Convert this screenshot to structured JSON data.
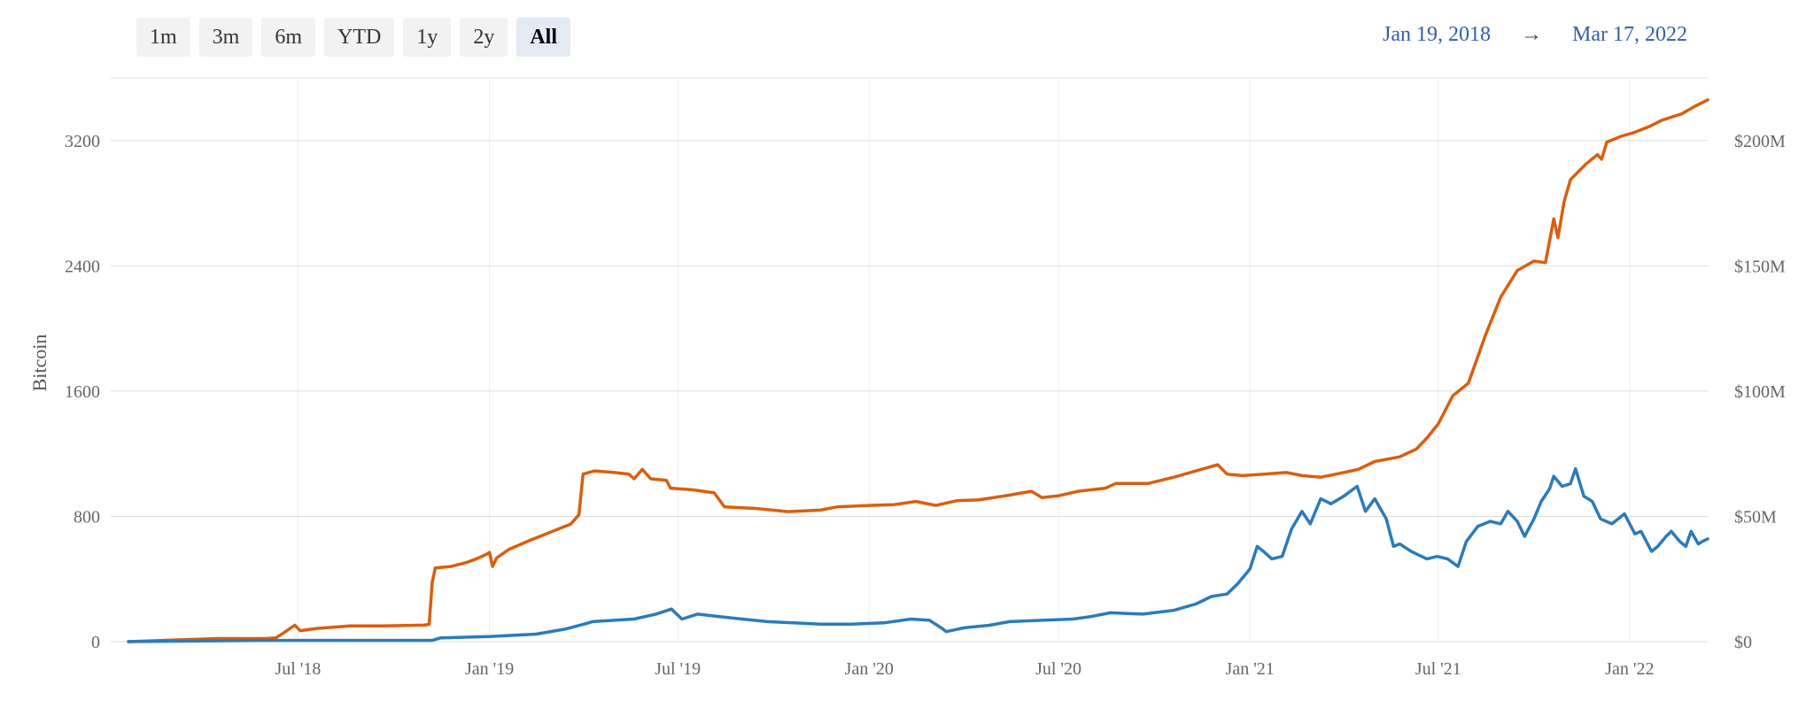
{
  "range_buttons": [
    {
      "label": "1m",
      "active": false
    },
    {
      "label": "3m",
      "active": false
    },
    {
      "label": "6m",
      "active": false
    },
    {
      "label": "YTD",
      "active": false
    },
    {
      "label": "1y",
      "active": false
    },
    {
      "label": "2y",
      "active": false
    },
    {
      "label": "All",
      "active": true
    }
  ],
  "date_range": {
    "start": "Jan 19, 2018",
    "arrow": "→",
    "end": "Mar 17, 2022"
  },
  "colors": {
    "bitcoin_series": "#d95f0e",
    "usd_series": "#2b7bba",
    "grid": "#dddddd",
    "vgrid": "#eeeeee"
  },
  "chart_data": {
    "type": "line",
    "title": "",
    "xlabel": "",
    "ylabel": "Bitcoin",
    "ylim": [
      0,
      3600
    ],
    "y2lim": [
      0,
      225
    ],
    "x_range": [
      "2018-01-19",
      "2022-03-17"
    ],
    "x_ticks": [
      {
        "date": "2018-07-01",
        "label": "Jul '18"
      },
      {
        "date": "2019-01-01",
        "label": "Jan '19"
      },
      {
        "date": "2019-07-01",
        "label": "Jul '19"
      },
      {
        "date": "2020-01-01",
        "label": "Jan '20"
      },
      {
        "date": "2020-07-01",
        "label": "Jul '20"
      },
      {
        "date": "2021-01-01",
        "label": "Jan '21"
      },
      {
        "date": "2021-07-01",
        "label": "Jul '21"
      },
      {
        "date": "2022-01-01",
        "label": "Jan '22"
      }
    ],
    "y_ticks": [
      0,
      800,
      1600,
      2400,
      3200
    ],
    "y_tick_labels": [
      "0",
      "800",
      "1600",
      "2400",
      "3200"
    ],
    "y2_ticks": [
      0,
      50,
      100,
      150,
      200
    ],
    "y2_tick_labels": [
      "$0",
      "$50M",
      "$100M",
      "$150M",
      "$200M"
    ],
    "grid": true,
    "legend": "none",
    "series": [
      {
        "axis": "left",
        "color": "#d95f0e",
        "points": [
          [
            "2018-01-19",
            0
          ],
          [
            "2018-03-01",
            10
          ],
          [
            "2018-04-15",
            20
          ],
          [
            "2018-06-01",
            20
          ],
          [
            "2018-06-10",
            25
          ],
          [
            "2018-06-18",
            60
          ],
          [
            "2018-06-28",
            105
          ],
          [
            "2018-07-03",
            70
          ],
          [
            "2018-07-20",
            85
          ],
          [
            "2018-08-20",
            100
          ],
          [
            "2018-09-20",
            100
          ],
          [
            "2018-10-30",
            105
          ],
          [
            "2018-11-04",
            110
          ],
          [
            "2018-11-07",
            380
          ],
          [
            "2018-11-10",
            470
          ],
          [
            "2018-11-25",
            480
          ],
          [
            "2018-12-10",
            505
          ],
          [
            "2018-12-20",
            530
          ],
          [
            "2018-12-30",
            560
          ],
          [
            "2019-01-01",
            570
          ],
          [
            "2019-01-04",
            480
          ],
          [
            "2019-01-08",
            535
          ],
          [
            "2019-01-20",
            590
          ],
          [
            "2019-02-10",
            650
          ],
          [
            "2019-03-01",
            700
          ],
          [
            "2019-03-20",
            750
          ],
          [
            "2019-03-28",
            810
          ],
          [
            "2019-04-01",
            1070
          ],
          [
            "2019-04-12",
            1090
          ],
          [
            "2019-05-01",
            1080
          ],
          [
            "2019-05-15",
            1070
          ],
          [
            "2019-05-20",
            1040
          ],
          [
            "2019-05-28",
            1100
          ],
          [
            "2019-06-05",
            1040
          ],
          [
            "2019-06-20",
            1030
          ],
          [
            "2019-06-24",
            980
          ],
          [
            "2019-07-15",
            970
          ],
          [
            "2019-08-05",
            950
          ],
          [
            "2019-08-15",
            860
          ],
          [
            "2019-09-15",
            850
          ],
          [
            "2019-10-15",
            830
          ],
          [
            "2019-11-15",
            840
          ],
          [
            "2019-12-01",
            860
          ],
          [
            "2020-01-01",
            870
          ],
          [
            "2020-01-25",
            875
          ],
          [
            "2020-02-15",
            895
          ],
          [
            "2020-03-05",
            870
          ],
          [
            "2020-03-25",
            900
          ],
          [
            "2020-04-15",
            905
          ],
          [
            "2020-05-10",
            930
          ],
          [
            "2020-06-05",
            960
          ],
          [
            "2020-06-15",
            920
          ],
          [
            "2020-06-30",
            930
          ],
          [
            "2020-07-20",
            960
          ],
          [
            "2020-08-15",
            980
          ],
          [
            "2020-08-25",
            1010
          ],
          [
            "2020-09-25",
            1010
          ],
          [
            "2020-10-20",
            1050
          ],
          [
            "2020-11-15",
            1100
          ],
          [
            "2020-12-01",
            1130
          ],
          [
            "2020-12-10",
            1070
          ],
          [
            "2020-12-25",
            1060
          ],
          [
            "2021-01-15",
            1070
          ],
          [
            "2021-02-05",
            1080
          ],
          [
            "2021-02-20",
            1060
          ],
          [
            "2021-03-10",
            1050
          ],
          [
            "2021-03-25",
            1070
          ],
          [
            "2021-04-15",
            1100
          ],
          [
            "2021-05-01",
            1150
          ],
          [
            "2021-05-25",
            1180
          ],
          [
            "2021-06-10",
            1230
          ],
          [
            "2021-06-20",
            1300
          ],
          [
            "2021-07-01",
            1390
          ],
          [
            "2021-07-15",
            1570
          ],
          [
            "2021-07-30",
            1650
          ],
          [
            "2021-08-15",
            1950
          ],
          [
            "2021-08-30",
            2200
          ],
          [
            "2021-09-15",
            2370
          ],
          [
            "2021-10-01",
            2430
          ],
          [
            "2021-10-12",
            2420
          ],
          [
            "2021-10-20",
            2700
          ],
          [
            "2021-10-24",
            2580
          ],
          [
            "2021-10-30",
            2810
          ],
          [
            "2021-11-05",
            2950
          ],
          [
            "2021-11-20",
            3050
          ],
          [
            "2021-12-01",
            3110
          ],
          [
            "2021-12-05",
            3080
          ],
          [
            "2021-12-10",
            3190
          ],
          [
            "2021-12-25",
            3230
          ],
          [
            "2022-01-05",
            3250
          ],
          [
            "2022-01-20",
            3290
          ],
          [
            "2022-02-01",
            3330
          ],
          [
            "2022-02-20",
            3370
          ],
          [
            "2022-03-05",
            3420
          ],
          [
            "2022-03-17",
            3460
          ]
        ]
      },
      {
        "axis": "right",
        "color": "#2b7bba",
        "points": [
          [
            "2018-01-19",
            0
          ],
          [
            "2018-06-01",
            0.5
          ],
          [
            "2018-11-07",
            0.5
          ],
          [
            "2018-11-15",
            1.5
          ],
          [
            "2019-01-01",
            2
          ],
          [
            "2019-02-15",
            3
          ],
          [
            "2019-03-15",
            5
          ],
          [
            "2019-04-02",
            7
          ],
          [
            "2019-04-10",
            8
          ],
          [
            "2019-05-20",
            9
          ],
          [
            "2019-06-10",
            11
          ],
          [
            "2019-06-25",
            13
          ],
          [
            "2019-07-05",
            9
          ],
          [
            "2019-07-20",
            11
          ],
          [
            "2019-08-10",
            10
          ],
          [
            "2019-09-01",
            9
          ],
          [
            "2019-09-25",
            8
          ],
          [
            "2019-10-20",
            7.5
          ],
          [
            "2019-11-15",
            7
          ],
          [
            "2019-12-15",
            7
          ],
          [
            "2020-01-15",
            7.5
          ],
          [
            "2020-02-10",
            9
          ],
          [
            "2020-02-28",
            8.5
          ],
          [
            "2020-03-12",
            5
          ],
          [
            "2020-03-15",
            4
          ],
          [
            "2020-04-01",
            5.5
          ],
          [
            "2020-04-25",
            6.5
          ],
          [
            "2020-05-15",
            8
          ],
          [
            "2020-06-15",
            8.5
          ],
          [
            "2020-07-15",
            9
          ],
          [
            "2020-08-01",
            10
          ],
          [
            "2020-08-20",
            11.5
          ],
          [
            "2020-09-20",
            11
          ],
          [
            "2020-10-20",
            12.5
          ],
          [
            "2020-11-10",
            15
          ],
          [
            "2020-11-25",
            18
          ],
          [
            "2020-12-10",
            19
          ],
          [
            "2020-12-20",
            23
          ],
          [
            "2021-01-01",
            29
          ],
          [
            "2021-01-08",
            38
          ],
          [
            "2021-01-14",
            36
          ],
          [
            "2021-01-22",
            33
          ],
          [
            "2021-02-01",
            34
          ],
          [
            "2021-02-10",
            45
          ],
          [
            "2021-02-20",
            52
          ],
          [
            "2021-02-28",
            47
          ],
          [
            "2021-03-10",
            57
          ],
          [
            "2021-03-20",
            55
          ],
          [
            "2021-04-01",
            58
          ],
          [
            "2021-04-14",
            62
          ],
          [
            "2021-04-22",
            52
          ],
          [
            "2021-05-01",
            57
          ],
          [
            "2021-05-12",
            49
          ],
          [
            "2021-05-19",
            38
          ],
          [
            "2021-05-25",
            39
          ],
          [
            "2021-06-05",
            36
          ],
          [
            "2021-06-20",
            33
          ],
          [
            "2021-06-30",
            34
          ],
          [
            "2021-07-10",
            33
          ],
          [
            "2021-07-20",
            30
          ],
          [
            "2021-07-28",
            40
          ],
          [
            "2021-08-08",
            46
          ],
          [
            "2021-08-20",
            48
          ],
          [
            "2021-08-30",
            47
          ],
          [
            "2021-09-06",
            52
          ],
          [
            "2021-09-15",
            48
          ],
          [
            "2021-09-22",
            42
          ],
          [
            "2021-10-01",
            49
          ],
          [
            "2021-10-08",
            56
          ],
          [
            "2021-10-16",
            61
          ],
          [
            "2021-10-20",
            66
          ],
          [
            "2021-10-28",
            62
          ],
          [
            "2021-11-05",
            63
          ],
          [
            "2021-11-10",
            69
          ],
          [
            "2021-11-18",
            58
          ],
          [
            "2021-11-26",
            56
          ],
          [
            "2021-12-04",
            49
          ],
          [
            "2021-12-15",
            47
          ],
          [
            "2021-12-27",
            51
          ],
          [
            "2022-01-06",
            43
          ],
          [
            "2022-01-12",
            44
          ],
          [
            "2022-01-22",
            36
          ],
          [
            "2022-01-28",
            38
          ],
          [
            "2022-02-05",
            42
          ],
          [
            "2022-02-10",
            44
          ],
          [
            "2022-02-18",
            40
          ],
          [
            "2022-02-24",
            38
          ],
          [
            "2022-03-01",
            44
          ],
          [
            "2022-03-08",
            39
          ],
          [
            "2022-03-12",
            40
          ],
          [
            "2022-03-17",
            41
          ]
        ]
      }
    ]
  }
}
